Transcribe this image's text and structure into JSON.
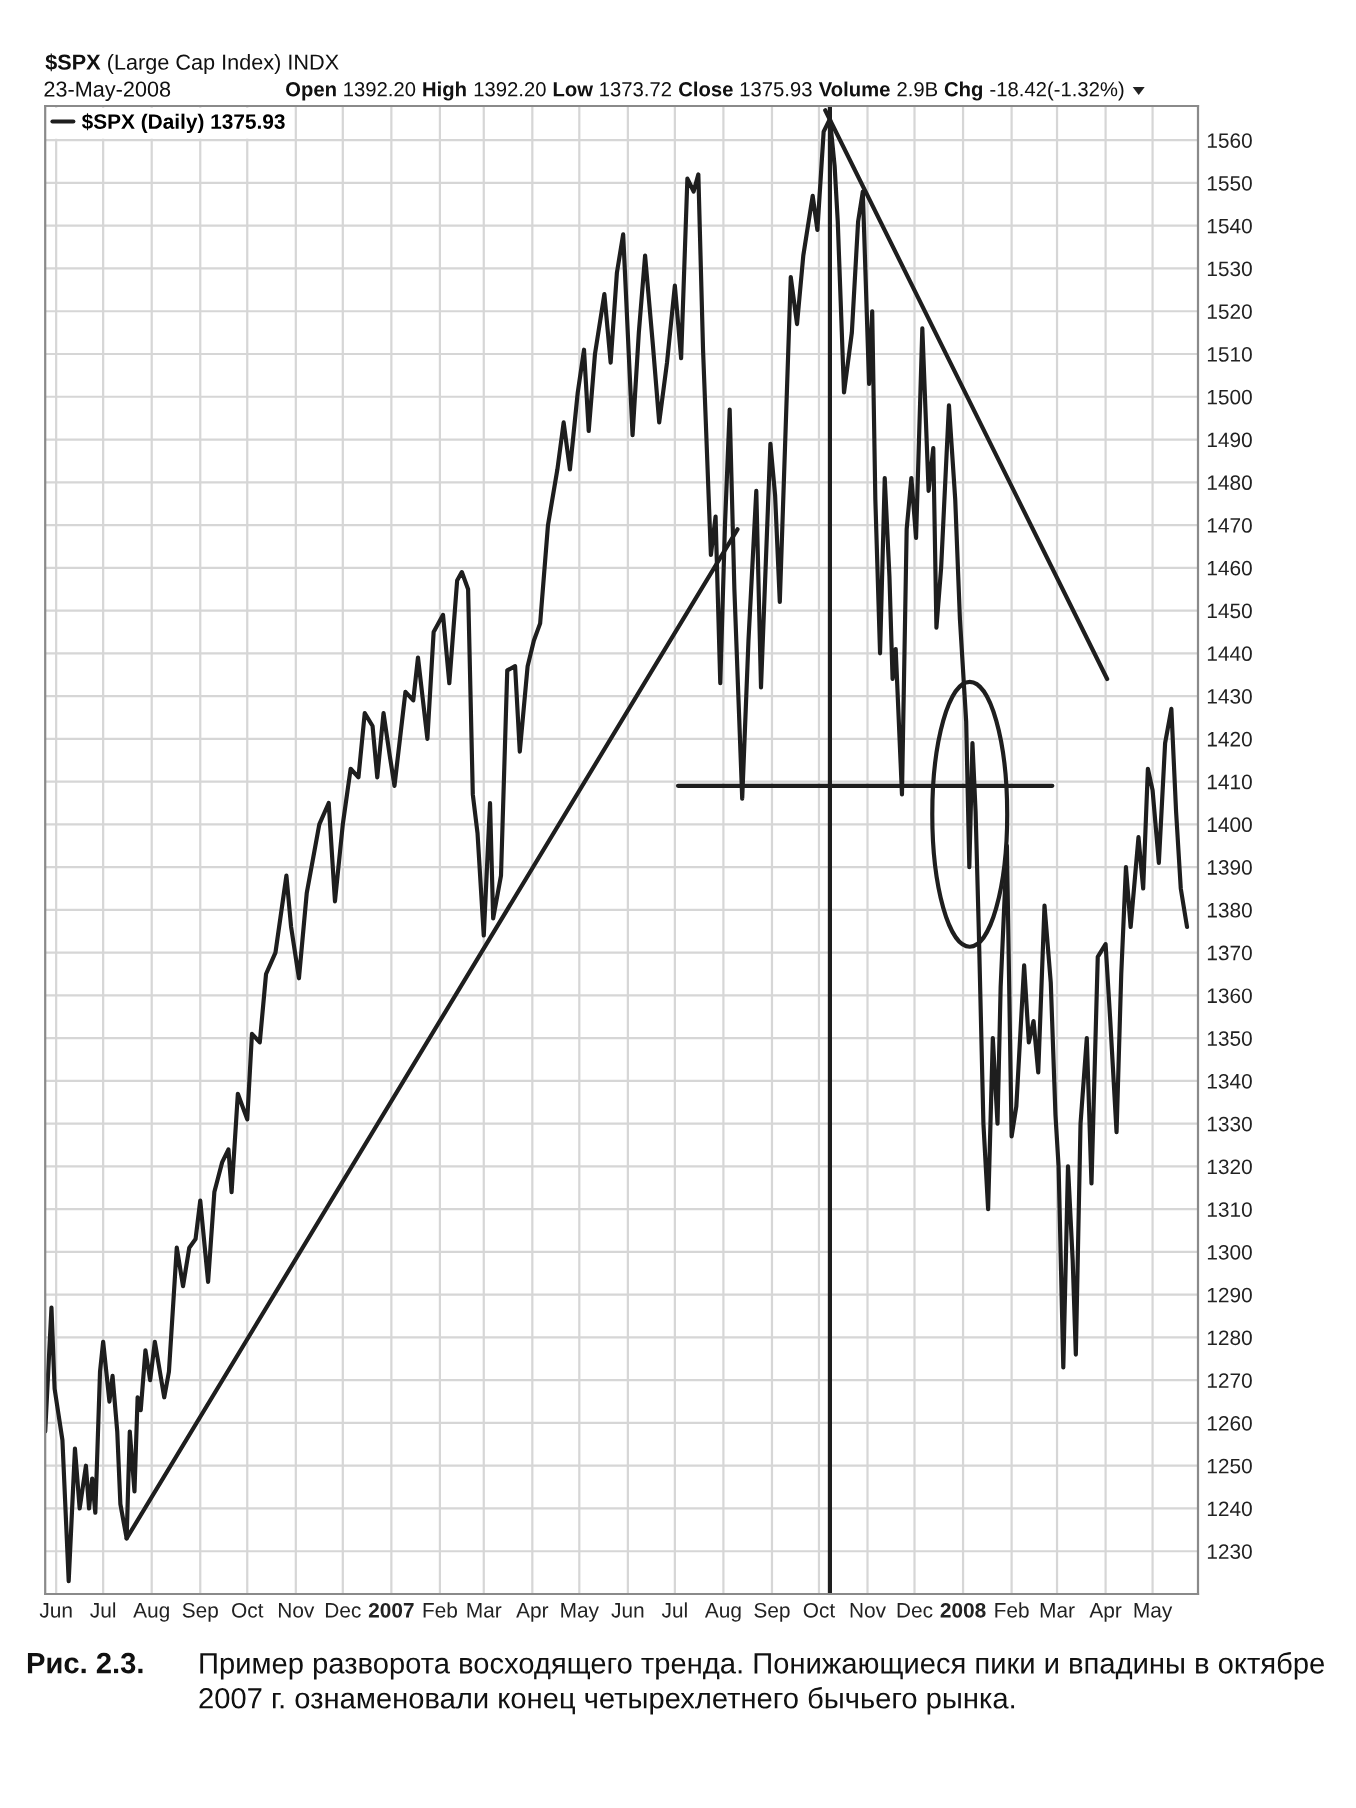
{
  "chart_data": {
    "type": "line",
    "title": "$SPX (Large Cap Index) INDX",
    "subtitle": "23-May-2008",
    "annotations": [
      "Open 1392.20 High 1392.20 Low 1373.72 Close 1375.93 Volume 2.9B Chg -18.42(-1.32%)",
      "Рис. 2.3.",
      "Пример разворота восходящего тренда. Понижающиеся пики и впадины в октябре 2007 г. ознаменовали конец четырехлетнего бычьего рынка."
    ],
    "xlim": [
      "2006-05-25",
      "2008-05-30"
    ],
    "xticks": [
      {
        "value": "2006-06-01",
        "label": "Jun"
      },
      {
        "value": "2006-07-01",
        "label": "Jul"
      },
      {
        "value": "2006-08-01",
        "label": "Aug"
      },
      {
        "value": "2006-09-01",
        "label": "Sep"
      },
      {
        "value": "2006-10-01",
        "label": "Oct"
      },
      {
        "value": "2006-11-01",
        "label": "Nov"
      },
      {
        "value": "2006-12-01",
        "label": "Dec"
      },
      {
        "value": "2007-01-01",
        "label": "2007"
      },
      {
        "value": "2007-02-01",
        "label": "Feb"
      },
      {
        "value": "2007-03-01",
        "label": "Mar"
      },
      {
        "value": "2007-04-01",
        "label": "Apr"
      },
      {
        "value": "2007-05-01",
        "label": "May"
      },
      {
        "value": "2007-06-01",
        "label": "Jun"
      },
      {
        "value": "2007-07-01",
        "label": "Jul"
      },
      {
        "value": "2007-08-01",
        "label": "Aug"
      },
      {
        "value": "2007-09-01",
        "label": "Sep"
      },
      {
        "value": "2007-10-01",
        "label": "Oct"
      },
      {
        "value": "2007-11-01",
        "label": "Nov"
      },
      {
        "value": "2007-12-01",
        "label": "Dec"
      },
      {
        "value": "2008-01-01",
        "label": "2008"
      },
      {
        "value": "2008-02-01",
        "label": "Feb"
      },
      {
        "value": "2008-03-01",
        "label": "Mar"
      },
      {
        "value": "2008-04-01",
        "label": "Apr"
      },
      {
        "value": "2008-05-01",
        "label": "May"
      }
    ],
    "ylim": [
      1220,
      1568
    ],
    "yticks": [
      1230,
      1240,
      1250,
      1260,
      1270,
      1280,
      1290,
      1300,
      1310,
      1320,
      1330,
      1340,
      1350,
      1360,
      1370,
      1380,
      1390,
      1400,
      1410,
      1420,
      1430,
      1440,
      1450,
      1460,
      1470,
      1480,
      1490,
      1500,
      1510,
      1520,
      1530,
      1540,
      1550,
      1560
    ],
    "grid": true,
    "legend": "top left",
    "line_style": "solid",
    "series": [
      {
        "name": "$SPX (Daily) 1375.93",
        "color": "#1e1e1e",
        "x": [
          "2006-05-25",
          "2006-05-29",
          "2006-05-31",
          "2006-06-05",
          "2006-06-09",
          "2006-06-13",
          "2006-06-16",
          "2006-06-20",
          "2006-06-22",
          "2006-06-24",
          "2006-06-26",
          "2006-06-29",
          "2006-07-01",
          "2006-07-03",
          "2006-07-05",
          "2006-07-07",
          "2006-07-10",
          "2006-07-12",
          "2006-07-16",
          "2006-07-18",
          "2006-07-21",
          "2006-07-23",
          "2006-07-25",
          "2006-07-28",
          "2006-07-31",
          "2006-08-03",
          "2006-08-09",
          "2006-08-12",
          "2006-08-17",
          "2006-08-21",
          "2006-08-25",
          "2006-08-29",
          "2006-09-01",
          "2006-09-06",
          "2006-09-10",
          "2006-09-15",
          "2006-09-19",
          "2006-09-21",
          "2006-09-25",
          "2006-10-01",
          "2006-10-04",
          "2006-10-09",
          "2006-10-13",
          "2006-10-19",
          "2006-10-26",
          "2006-10-29",
          "2006-11-03",
          "2006-11-08",
          "2006-11-16",
          "2006-11-22",
          "2006-11-26",
          "2006-12-01",
          "2006-12-06",
          "2006-12-11",
          "2006-12-15",
          "2006-12-20",
          "2006-12-23",
          "2006-12-27",
          "2006-12-31",
          "2007-01-03",
          "2007-01-10",
          "2007-01-15",
          "2007-01-18",
          "2007-01-24",
          "2007-01-28",
          "2007-02-03",
          "2007-02-07",
          "2007-02-12",
          "2007-02-15",
          "2007-02-19",
          "2007-02-22",
          "2007-02-25",
          "2007-03-01",
          "2007-03-05",
          "2007-03-07",
          "2007-03-12",
          "2007-03-16",
          "2007-03-21",
          "2007-03-24",
          "2007-03-29",
          "2007-04-02",
          "2007-04-06",
          "2007-04-11",
          "2007-04-17",
          "2007-04-21",
          "2007-04-25",
          "2007-04-30",
          "2007-05-04",
          "2007-05-07",
          "2007-05-11",
          "2007-05-17",
          "2007-05-21",
          "2007-05-25",
          "2007-05-29",
          "2007-06-04",
          "2007-06-08",
          "2007-06-12",
          "2007-06-17",
          "2007-06-21",
          "2007-06-26",
          "2007-07-01",
          "2007-07-05",
          "2007-07-09",
          "2007-07-13",
          "2007-07-16",
          "2007-07-19",
          "2007-07-24",
          "2007-07-27",
          "2007-07-30",
          "2007-08-02",
          "2007-08-05",
          "2007-08-08",
          "2007-08-13",
          "2007-08-17",
          "2007-08-22",
          "2007-08-25",
          "2007-08-31",
          "2007-09-03",
          "2007-09-06",
          "2007-09-13",
          "2007-09-17",
          "2007-09-21",
          "2007-09-27",
          "2007-09-30",
          "2007-10-04",
          "2007-10-08",
          "2007-10-11",
          "2007-10-13",
          "2007-10-17",
          "2007-10-22",
          "2007-10-26",
          "2007-10-29",
          "2007-11-02",
          "2007-11-04",
          "2007-11-06",
          "2007-11-09",
          "2007-11-12",
          "2007-11-15",
          "2007-11-17",
          "2007-11-19",
          "2007-11-23",
          "2007-11-26",
          "2007-11-29",
          "2007-12-02",
          "2007-12-06",
          "2007-12-10",
          "2007-12-13",
          "2007-12-15",
          "2007-12-18",
          "2007-12-23",
          "2007-12-27",
          "2007-12-30",
          "2008-01-03",
          "2008-01-05",
          "2008-01-07",
          "2008-01-09",
          "2008-01-11",
          "2008-01-14",
          "2008-01-17",
          "2008-01-20",
          "2008-01-23",
          "2008-01-25",
          "2008-01-29",
          "2008-02-01",
          "2008-02-04",
          "2008-02-09",
          "2008-02-12",
          "2008-02-15",
          "2008-02-18",
          "2008-02-22",
          "2008-02-26",
          "2008-02-29",
          "2008-03-02",
          "2008-03-05",
          "2008-03-08",
          "2008-03-11",
          "2008-03-13",
          "2008-03-16",
          "2008-03-20",
          "2008-03-23",
          "2008-03-27",
          "2008-04-01",
          "2008-04-04",
          "2008-04-08",
          "2008-04-11",
          "2008-04-14",
          "2008-04-17",
          "2008-04-22",
          "2008-04-25",
          "2008-04-28",
          "2008-05-01",
          "2008-05-05",
          "2008-05-09",
          "2008-05-13",
          "2008-05-16",
          "2008-05-19",
          "2008-05-23"
        ],
        "values": [
          1258,
          1287,
          1268,
          1256,
          1223,
          1254,
          1240,
          1250,
          1240,
          1247,
          1239,
          1272,
          1279,
          1272,
          1265,
          1271,
          1258,
          1241,
          1233,
          1258,
          1244,
          1266,
          1263,
          1277,
          1270,
          1279,
          1266,
          1272,
          1301,
          1292,
          1301,
          1303,
          1312,
          1293,
          1314,
          1321,
          1324,
          1314,
          1337,
          1331,
          1351,
          1349,
          1365,
          1370,
          1388,
          1376,
          1364,
          1384,
          1400,
          1405,
          1382,
          1400,
          1413,
          1411,
          1426,
          1423,
          1411,
          1426,
          1416,
          1409,
          1431,
          1429,
          1439,
          1420,
          1445,
          1449,
          1433,
          1457,
          1459,
          1455,
          1407,
          1398,
          1374,
          1405,
          1378,
          1388,
          1436,
          1437,
          1417,
          1437,
          1443,
          1447,
          1470,
          1483,
          1494,
          1483,
          1501,
          1511,
          1492,
          1510,
          1524,
          1508,
          1529,
          1538,
          1491,
          1515,
          1533,
          1512,
          1494,
          1508,
          1526,
          1509,
          1551,
          1548,
          1552,
          1511,
          1463,
          1472,
          1433,
          1470,
          1497,
          1455,
          1406,
          1443,
          1478,
          1432,
          1489,
          1477,
          1452,
          1528,
          1517,
          1533,
          1547,
          1539,
          1562,
          1565,
          1554,
          1541,
          1501,
          1515,
          1541,
          1548,
          1503,
          1520,
          1476,
          1440,
          1481,
          1458,
          1434,
          1441,
          1407,
          1469,
          1481,
          1467,
          1516,
          1478,
          1488,
          1446,
          1460,
          1498,
          1476,
          1448,
          1424,
          1390,
          1419,
          1403,
          1376,
          1330,
          1310,
          1350,
          1330,
          1362,
          1395,
          1327,
          1334,
          1367,
          1349,
          1354,
          1342,
          1381,
          1363,
          1332,
          1320,
          1273,
          1320,
          1298,
          1276,
          1330,
          1350,
          1316,
          1369,
          1372,
          1354,
          1328,
          1365,
          1390,
          1376,
          1397,
          1385,
          1413,
          1408,
          1391,
          1419,
          1427,
          1403,
          1385,
          1376
        ]
      },
      {
        "type": "line",
        "color": "#1e1e1e",
        "x": [
          "2006-07-16",
          "2007-08-10"
        ],
        "values": [
          1233,
          1469
        ]
      },
      {
        "type": "line",
        "color": "#1e1e1e",
        "x": [
          "2007-10-05",
          "2008-04-02"
        ],
        "values": [
          1567,
          1434
        ]
      },
      {
        "type": "line",
        "color": "#1e1e1e",
        "x": [
          "2007-07-03",
          "2008-02-27"
        ],
        "values": [
          1409,
          1409
        ]
      }
    ],
    "ref_lines": [
      {
        "axis": "x",
        "value": "2007-10-08",
        "color": "#1e1e1e"
      }
    ]
  }
}
